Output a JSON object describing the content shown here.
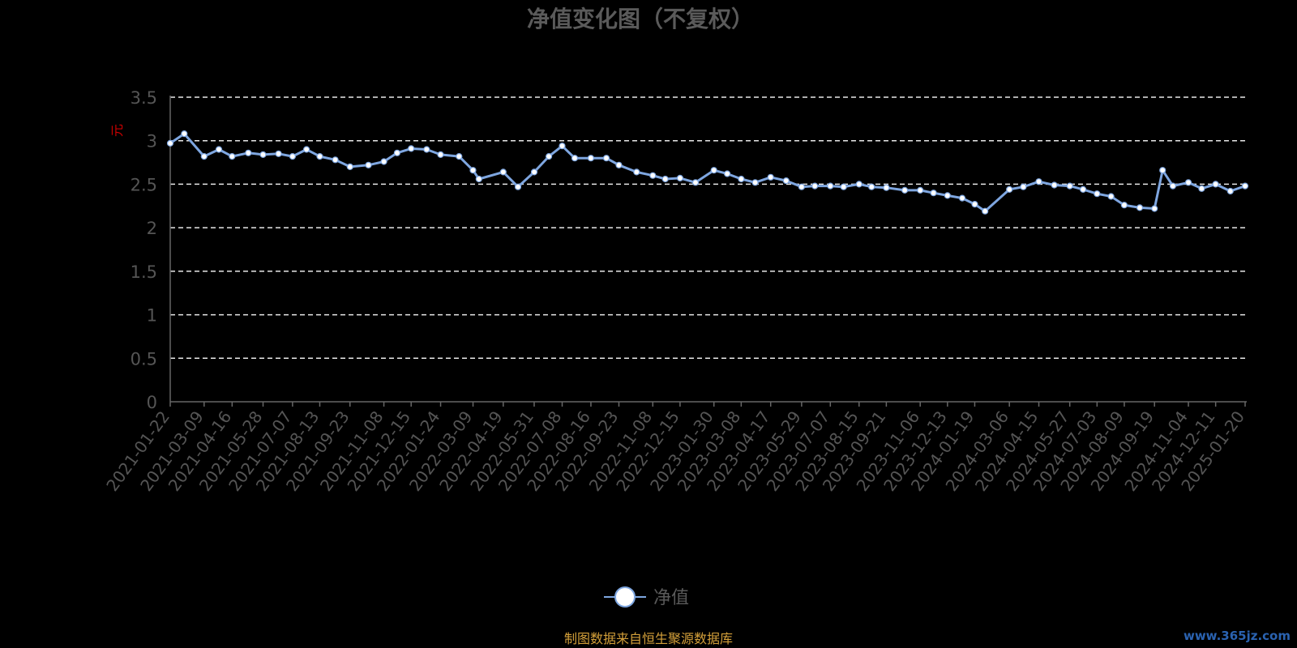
{
  "chart_data": {
    "type": "line",
    "title": "净值变化图（不复权）",
    "ylabel": "元",
    "ylim": [
      0,
      3.5
    ],
    "y_ticks": [
      "0",
      "0.5",
      "1",
      "1.5",
      "2",
      "2.5",
      "3",
      "3.5"
    ],
    "grid": true,
    "legend_position": "bottom-center",
    "x_ticks": [
      "2021-01-22",
      "2021-03-09",
      "2021-04-16",
      "2021-05-28",
      "2021-07-07",
      "2021-08-13",
      "2021-09-23",
      "2021-11-08",
      "2021-12-15",
      "2022-01-24",
      "2022-03-09",
      "2022-04-19",
      "2022-05-31",
      "2022-07-08",
      "2022-08-16",
      "2022-09-23",
      "2022-11-08",
      "2022-12-15",
      "2023-01-30",
      "2023-03-08",
      "2023-04-17",
      "2023-05-29",
      "2023-07-07",
      "2023-08-15",
      "2023-09-21",
      "2023-11-06",
      "2023-12-13",
      "2024-01-19",
      "2024-03-06",
      "2024-04-15",
      "2024-05-27",
      "2024-07-03",
      "2024-08-09",
      "2024-09-19",
      "2024-11-04",
      "2024-12-11",
      "2025-01-20"
    ],
    "series": [
      {
        "name": "净值",
        "color": "#7ea6e0",
        "marker_color": "#ffffff",
        "x": [
          "2021-01-22",
          "2021-02-10",
          "2021-03-09",
          "2021-03-29",
          "2021-04-16",
          "2021-05-08",
          "2021-05-28",
          "2021-06-18",
          "2021-07-07",
          "2021-07-26",
          "2021-08-13",
          "2021-09-03",
          "2021-09-23",
          "2021-10-18",
          "2021-11-08",
          "2021-11-26",
          "2021-12-15",
          "2022-01-05",
          "2022-01-24",
          "2022-02-18",
          "2022-03-09",
          "2022-03-17",
          "2022-04-19",
          "2022-05-09",
          "2022-05-31",
          "2022-06-20",
          "2022-07-08",
          "2022-07-25",
          "2022-08-16",
          "2022-09-06",
          "2022-09-23",
          "2022-10-17",
          "2022-11-08",
          "2022-11-25",
          "2022-12-15",
          "2023-01-05",
          "2023-01-30",
          "2023-02-17",
          "2023-03-08",
          "2023-03-27",
          "2023-04-17",
          "2023-05-08",
          "2023-05-29",
          "2023-06-16",
          "2023-07-07",
          "2023-07-25",
          "2023-08-15",
          "2023-09-01",
          "2023-09-21",
          "2023-10-16",
          "2023-11-06",
          "2023-11-24",
          "2023-12-13",
          "2024-01-02",
          "2024-01-19",
          "2024-02-02",
          "2024-03-06",
          "2024-03-25",
          "2024-04-15",
          "2024-05-06",
          "2024-05-27",
          "2024-06-14",
          "2024-07-03",
          "2024-07-22",
          "2024-08-09",
          "2024-08-30",
          "2024-09-19",
          "2024-09-30",
          "2024-10-14",
          "2024-11-04",
          "2024-11-22",
          "2024-12-11",
          "2024-12-31",
          "2025-01-20"
        ],
        "values": [
          2.97,
          3.08,
          2.82,
          2.9,
          2.82,
          2.86,
          2.84,
          2.85,
          2.82,
          2.9,
          2.82,
          2.78,
          2.7,
          2.72,
          2.76,
          2.86,
          2.91,
          2.9,
          2.84,
          2.82,
          2.66,
          2.56,
          2.64,
          2.47,
          2.64,
          2.82,
          2.94,
          2.8,
          2.8,
          2.8,
          2.72,
          2.64,
          2.6,
          2.56,
          2.57,
          2.52,
          2.66,
          2.62,
          2.56,
          2.52,
          2.58,
          2.54,
          2.47,
          2.48,
          2.48,
          2.47,
          2.5,
          2.47,
          2.46,
          2.43,
          2.43,
          2.4,
          2.37,
          2.34,
          2.27,
          2.19,
          2.44,
          2.47,
          2.53,
          2.49,
          2.48,
          2.44,
          2.39,
          2.36,
          2.26,
          2.23,
          2.22,
          2.66,
          2.48,
          2.52,
          2.45,
          2.5,
          2.42,
          2.48
        ]
      }
    ]
  },
  "legend": {
    "label": "净值"
  },
  "footer": {
    "credit": "制图数据来自恒生聚源数据库",
    "watermark": "www.365jz.com"
  }
}
